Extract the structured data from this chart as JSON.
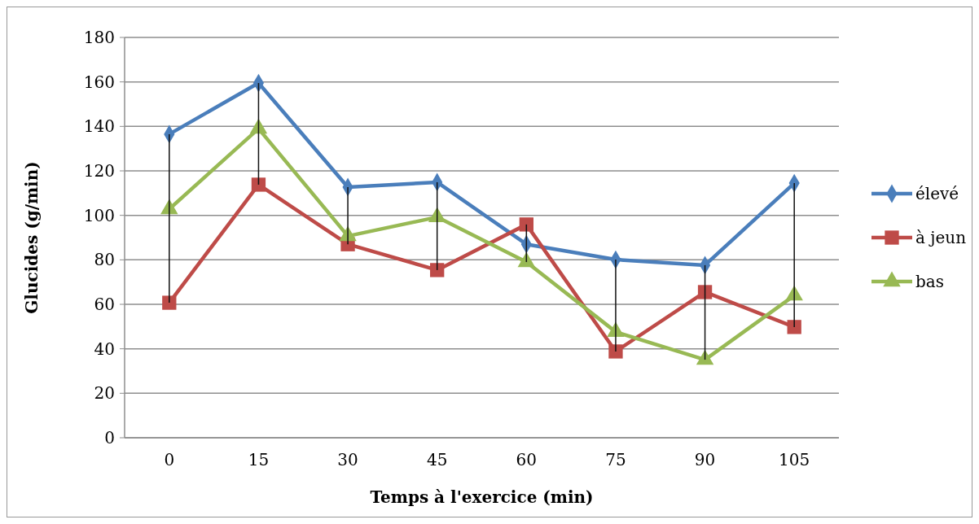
{
  "chart_data": {
    "type": "line",
    "xlabel": "Temps à l'exercice (min)",
    "ylabel": "Glucides (g/min)",
    "categories": [
      "0",
      "15",
      "30",
      "45",
      "60",
      "75",
      "90",
      "105"
    ],
    "ylim": [
      0,
      180
    ],
    "yticks": [
      0,
      20,
      40,
      60,
      80,
      100,
      120,
      140,
      160,
      180
    ],
    "grid": "y",
    "legend": "right",
    "series": [
      {
        "name": "élevé",
        "color": "#4a7ebb",
        "marker": "diamond",
        "values": [
          136.5,
          159.5,
          112.7,
          114.9,
          87,
          80.1,
          77.6,
          114.5
        ],
        "errors": [
          [
            60.7,
            136.5
          ],
          [
            113.8,
            159.5
          ],
          [
            87,
            112.7
          ],
          [
            75.4,
            114.9
          ],
          [
            79,
            95.9
          ],
          [
            38.8,
            80.1
          ],
          [
            35.1,
            77.6
          ],
          [
            49.8,
            114.5
          ]
        ]
      },
      {
        "name": "à jeun",
        "color": "#be4b48",
        "marker": "square",
        "values": [
          60.7,
          113.8,
          87,
          75.4,
          95.9,
          38.8,
          65.5,
          49.8
        ]
      },
      {
        "name": "bas",
        "color": "#98b954",
        "marker": "triangle",
        "values": [
          102.8,
          139,
          90.7,
          99.2,
          79,
          47.6,
          35.1,
          64
        ]
      }
    ]
  }
}
